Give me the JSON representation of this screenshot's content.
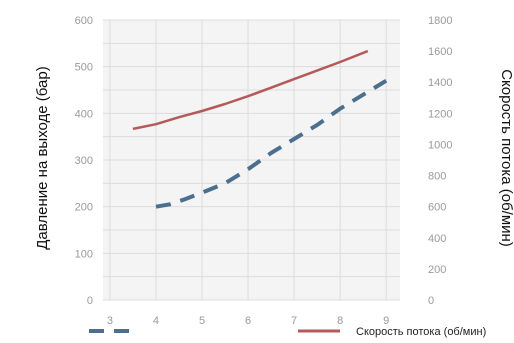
{
  "chart_data": {
    "type": "line",
    "title": "",
    "xlabel": "",
    "ylabel_left": "Давление на выходе (бар)",
    "ylabel_right": "Скорость потока (об/мин)",
    "x_ticks": [
      "3",
      "4",
      "5",
      "6",
      "7",
      "8",
      "9"
    ],
    "y_left_ticks": [
      "0",
      "100",
      "200",
      "300",
      "400",
      "500",
      "600"
    ],
    "y_right_ticks": [
      "0",
      "200",
      "400",
      "600",
      "800",
      "1000",
      "1200",
      "1400",
      "1600",
      "1800"
    ],
    "xlim": [
      2.85,
      9.3
    ],
    "ylim_left": [
      0,
      600
    ],
    "ylim_right": [
      0,
      1800
    ],
    "grid": true,
    "legend_position": "bottom",
    "series": [
      {
        "name": "",
        "axis": "left",
        "style": "dashed",
        "color": "#4a6f8f",
        "x": [
          4,
          4.3,
          4.6,
          5,
          5.5,
          6,
          6.5,
          7,
          7.5,
          8,
          8.5,
          9
        ],
        "y": [
          200,
          205,
          215,
          230,
          250,
          280,
          315,
          345,
          375,
          410,
          440,
          470
        ]
      },
      {
        "name": "Скорость потока (об/мин)",
        "axis": "right",
        "style": "solid",
        "color": "#b55a5a",
        "x": [
          3.5,
          4,
          4.5,
          5,
          5.5,
          6,
          6.5,
          7,
          7.5,
          8,
          8.6
        ],
        "y": [
          1100,
          1130,
          1175,
          1215,
          1260,
          1310,
          1365,
          1420,
          1475,
          1530,
          1600
        ]
      }
    ]
  }
}
